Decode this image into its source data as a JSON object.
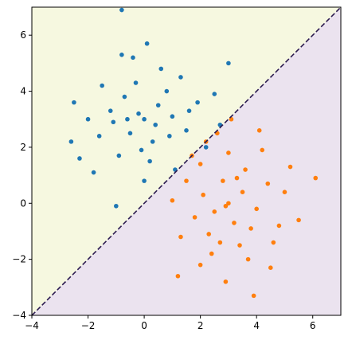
{
  "chart_data": {
    "type": "scatter",
    "xlim": [
      -4,
      7
    ],
    "ylim": [
      -4,
      7
    ],
    "xticks": [
      {
        "value": -4,
        "label": "−4"
      },
      {
        "value": -2,
        "label": "−2"
      },
      0,
      2,
      4,
      6
    ],
    "yticks": [
      {
        "value": -4,
        "label": "−4"
      },
      {
        "value": -2,
        "label": "−2"
      },
      0,
      2,
      4,
      6
    ],
    "region_colors": [
      "#f6f8e0",
      "#ebe3ef"
    ],
    "boundary": {
      "color": "#2b1a4f",
      "x": [
        -4,
        7
      ],
      "y": [
        -4,
        7
      ]
    },
    "series": [
      {
        "color": "#1f77b4",
        "x": [
          -0.8,
          3.0,
          -2.6,
          -1.0,
          0,
          0.5,
          -0.5,
          0.3,
          -0.7,
          1.0,
          -1.2,
          0.8,
          -0.3,
          1.5,
          -1.6,
          0.2,
          -0.9,
          1.9,
          -2.0,
          0.6,
          -0.4,
          1.3,
          -1.5,
          2.2,
          -2.3,
          0.0,
          1.1,
          -1.8,
          2.5,
          -0.2,
          0.4,
          -0.6,
          0.9,
          -1.1,
          1.6,
          -2.5,
          0.1,
          -0.8,
          2.7,
          -0.1
        ],
        "values": [
          6.9,
          5.0,
          2.2,
          -0.1,
          3,
          3.5,
          2.5,
          2.2,
          3.8,
          3.1,
          3.3,
          4.0,
          4.3,
          2.6,
          2.4,
          1.5,
          1.7,
          3.6,
          3.0,
          4.8,
          5.2,
          4.5,
          4.2,
          2.0,
          1.6,
          0.8,
          1.2,
          1.1,
          3.9,
          3.2,
          2.8,
          3.0,
          2.4,
          2.9,
          3.3,
          3.6,
          5.7,
          5.3,
          2.8,
          1.9
        ]
      },
      {
        "color": "#ff7f0e",
        "x": [
          3.9,
          1.2,
          6.1,
          2.9,
          3,
          2.5,
          3.5,
          2.8,
          3.2,
          2.1,
          4.0,
          3.6,
          2.3,
          4.4,
          1.8,
          3.0,
          2.6,
          4.8,
          3.4,
          1.5,
          2.0,
          4.2,
          5.0,
          3.7,
          2.4,
          1.3,
          5.5,
          4.6,
          2.9,
          3.3,
          2.2,
          4.1,
          1.7,
          3.8,
          2.7,
          5.2,
          1.0,
          3.1,
          4.5,
          2.0
        ],
        "values": [
          -3.3,
          -2.6,
          0.9,
          -2.8,
          0,
          -0.3,
          0.4,
          0.8,
          -0.7,
          0.3,
          -0.2,
          1.2,
          -1.1,
          0.7,
          -0.5,
          1.8,
          2.5,
          -0.8,
          -1.5,
          0.8,
          1.4,
          1.9,
          0.4,
          -2.0,
          -1.8,
          -1.2,
          -0.6,
          -1.4,
          -0.1,
          0.9,
          2.2,
          2.6,
          1.7,
          -0.9,
          -1.4,
          1.3,
          0.1,
          3.0,
          -2.3,
          -2.2
        ]
      }
    ]
  }
}
